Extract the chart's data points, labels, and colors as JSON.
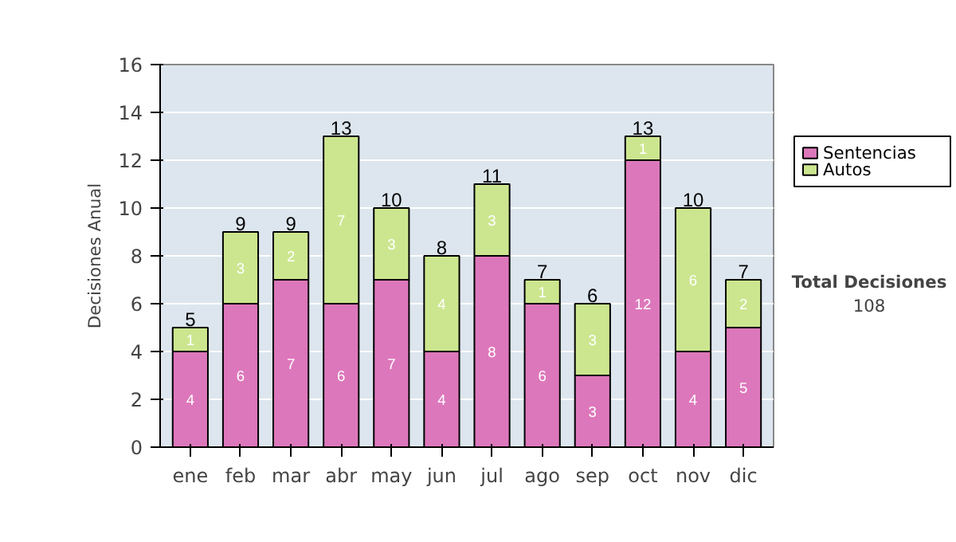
{
  "chart_data": {
    "type": "bar",
    "stacked": true,
    "ylabel": "Decisiones Anual",
    "categories": [
      "ene",
      "feb",
      "mar",
      "abr",
      "may",
      "jun",
      "jul",
      "ago",
      "sep",
      "oct",
      "nov",
      "dic"
    ],
    "series": [
      {
        "name": "Sentencias",
        "color": "#dd77bb",
        "values": [
          4,
          6,
          7,
          6,
          7,
          4,
          8,
          6,
          3,
          12,
          4,
          5
        ]
      },
      {
        "name": "Autos",
        "color": "#cce68f",
        "values": [
          1,
          3,
          2,
          7,
          3,
          4,
          3,
          1,
          3,
          1,
          6,
          2
        ]
      }
    ],
    "totals": [
      "5",
      "9",
      "9",
      "13",
      "10",
      "8",
      "11",
      "7",
      "6",
      "13",
      "10",
      "7"
    ],
    "data_labels": true,
    "ylim": [
      0,
      16
    ],
    "yticks": [
      0,
      2,
      4,
      6,
      8,
      10,
      12,
      14,
      16
    ],
    "grid": "y",
    "legend": "right",
    "annotations": [
      "Total Decisiones",
      "108"
    ]
  }
}
